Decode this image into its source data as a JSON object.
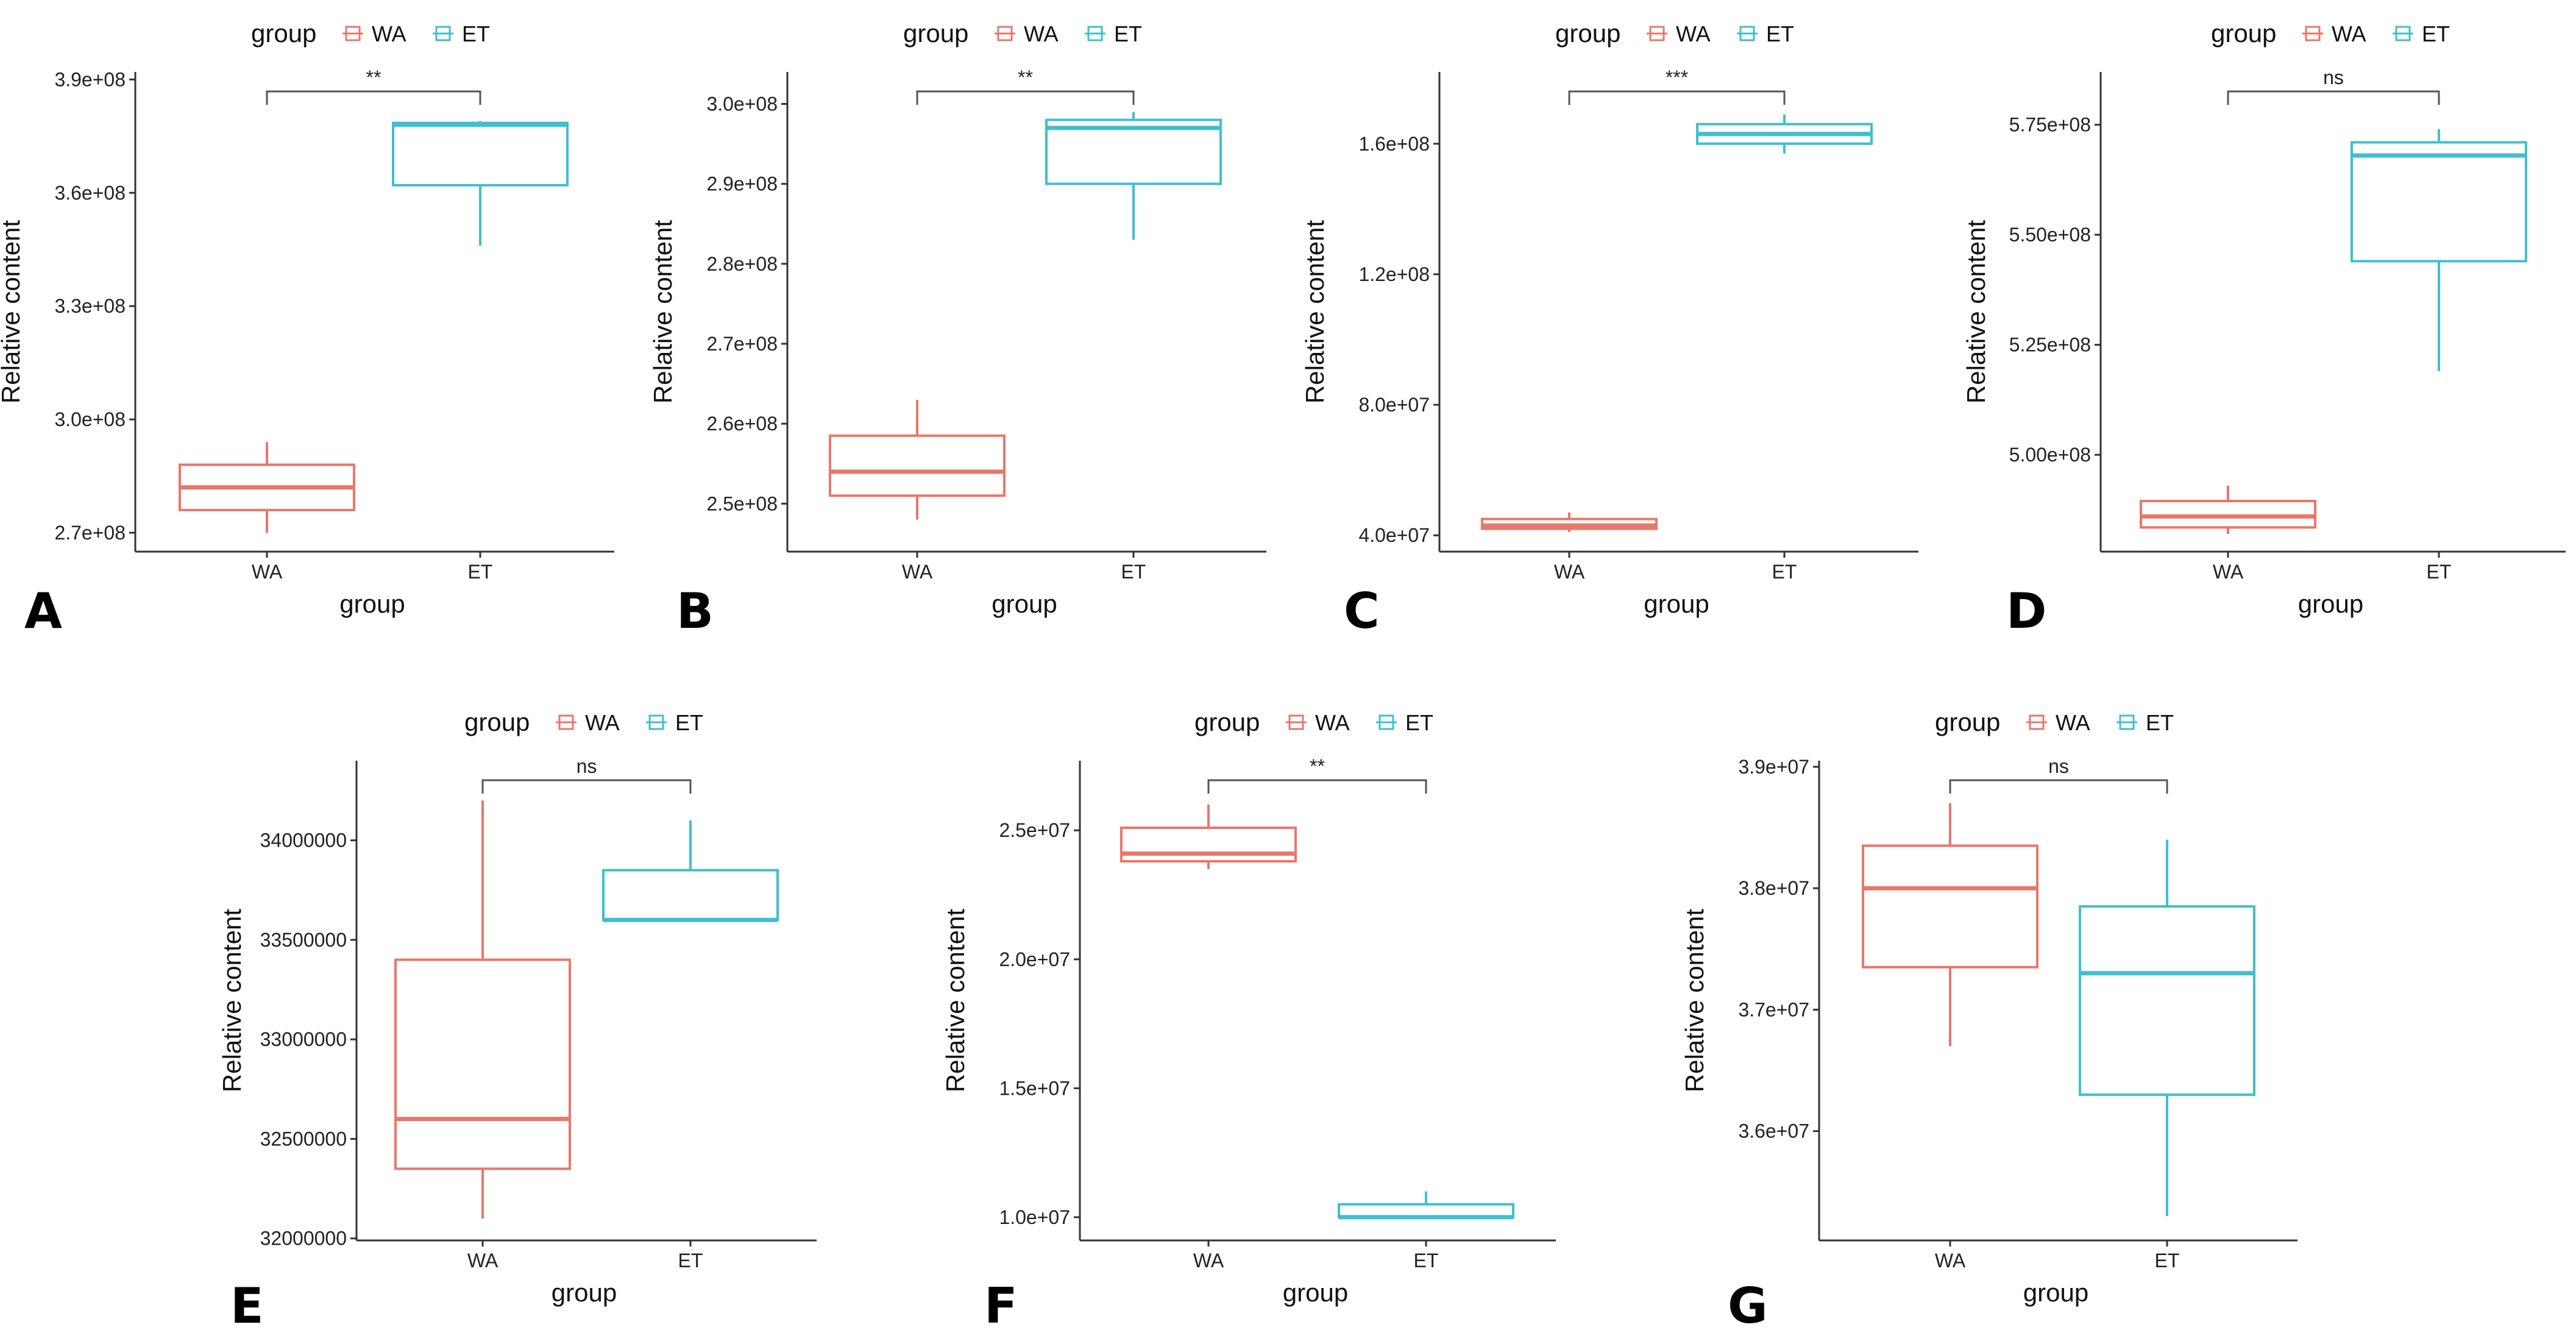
{
  "colors": {
    "WA": "#E8776B",
    "ET": "#3FBFD0",
    "axis": "#333333",
    "bracket": "#555555"
  },
  "legend": {
    "title": "group",
    "labels": [
      "WA",
      "ET"
    ]
  },
  "chart_data": [
    {
      "panel": "A",
      "type": "boxplot",
      "title": "",
      "xlabel": "group",
      "ylabel": "Relative content",
      "categories": [
        "WA",
        "ET"
      ],
      "ylim": [
        265000000,
        392000000
      ],
      "yticks": [
        270000000,
        300000000,
        330000000,
        360000000,
        390000000
      ],
      "ytick_labels": [
        "2.7e+08",
        "3.0e+08",
        "3.3e+08",
        "3.6e+08",
        "3.9e+08"
      ],
      "series": [
        {
          "name": "WA",
          "min": 270000000,
          "q1": 276000000,
          "median": 282000000,
          "q3": 288000000,
          "max": 294000000
        },
        {
          "name": "ET",
          "min": 346000000,
          "q1": 362000000,
          "median": 378000000,
          "q3": 378500000,
          "max": 379000000
        }
      ],
      "significance": "**"
    },
    {
      "panel": "B",
      "type": "boxplot",
      "title": "",
      "xlabel": "group",
      "ylabel": "Relative content",
      "categories": [
        "WA",
        "ET"
      ],
      "ylim": [
        244000000,
        304000000
      ],
      "yticks": [
        250000000,
        260000000,
        270000000,
        280000000,
        290000000,
        300000000
      ],
      "ytick_labels": [
        "2.5e+08",
        "2.6e+08",
        "2.7e+08",
        "2.8e+08",
        "2.9e+08",
        "3.0e+08"
      ],
      "series": [
        {
          "name": "WA",
          "min": 248000000,
          "q1": 251000000,
          "median": 254000000,
          "q3": 258500000,
          "max": 263000000
        },
        {
          "name": "ET",
          "min": 283000000,
          "q1": 290000000,
          "median": 297000000,
          "q3": 298000000,
          "max": 299000000
        }
      ],
      "significance": "**"
    },
    {
      "panel": "C",
      "type": "boxplot",
      "title": "",
      "xlabel": "group",
      "ylabel": "Relative content",
      "categories": [
        "WA",
        "ET"
      ],
      "ylim": [
        35000000,
        182000000
      ],
      "yticks": [
        40000000,
        80000000,
        120000000,
        160000000
      ],
      "ytick_labels": [
        "4.0e+07",
        "8.0e+07",
        "1.2e+08",
        "1.6e+08"
      ],
      "series": [
        {
          "name": "WA",
          "min": 41000000,
          "q1": 42000000,
          "median": 43000000,
          "q3": 45000000,
          "max": 47000000
        },
        {
          "name": "ET",
          "min": 157000000,
          "q1": 160000000,
          "median": 163000000,
          "q3": 166000000,
          "max": 169000000
        }
      ],
      "significance": "***"
    },
    {
      "panel": "D",
      "type": "boxplot",
      "title": "",
      "xlabel": "group",
      "ylabel": "Relative content",
      "categories": [
        "WA",
        "ET"
      ],
      "ylim": [
        478000000,
        587000000
      ],
      "yticks": [
        500000000,
        525000000,
        550000000,
        575000000
      ],
      "ytick_labels": [
        "5.00e+08",
        "5.25e+08",
        "5.50e+08",
        "5.75e+08"
      ],
      "series": [
        {
          "name": "WA",
          "min": 482000000,
          "q1": 483500000,
          "median": 486000000,
          "q3": 489500000,
          "max": 493000000
        },
        {
          "name": "ET",
          "min": 519000000,
          "q1": 544000000,
          "median": 568000000,
          "q3": 571000000,
          "max": 574000000
        }
      ],
      "significance": "ns"
    },
    {
      "panel": "E",
      "type": "boxplot",
      "title": "",
      "xlabel": "group",
      "ylabel": "Relative content",
      "categories": [
        "WA",
        "ET"
      ],
      "ylim": [
        31990000,
        34400000
      ],
      "yticks": [
        32000000,
        32500000,
        33000000,
        33500000,
        34000000
      ],
      "ytick_labels": [
        "32000000",
        "32500000",
        "33000000",
        "33500000",
        "34000000"
      ],
      "series": [
        {
          "name": "WA",
          "min": 32100000,
          "q1": 32350000,
          "median": 32600000,
          "q3": 33400000,
          "max": 34200000
        },
        {
          "name": "ET",
          "min": 33600000,
          "q1": 33600000,
          "median": 33600000,
          "q3": 33850000,
          "max": 34100000
        }
      ],
      "significance": "ns"
    },
    {
      "panel": "F",
      "type": "boxplot",
      "title": "",
      "xlabel": "group",
      "ylabel": "Relative content",
      "categories": [
        "WA",
        "ET"
      ],
      "ylim": [
        9100000,
        27700000
      ],
      "yticks": [
        10000000,
        15000000,
        20000000,
        25000000
      ],
      "ytick_labels": [
        "1.0e+07",
        "1.5e+07",
        "2.0e+07",
        "2.5e+07"
      ],
      "series": [
        {
          "name": "WA",
          "min": 23500000,
          "q1": 23800000,
          "median": 24100000,
          "q3": 25100000,
          "max": 26000000
        },
        {
          "name": "ET",
          "min": 10000000,
          "q1": 10000000,
          "median": 10000000,
          "q3": 10500000,
          "max": 11000000
        }
      ],
      "significance": "**"
    },
    {
      "panel": "G",
      "type": "boxplot",
      "title": "",
      "xlabel": "group",
      "ylabel": "Relative content",
      "categories": [
        "WA",
        "ET"
      ],
      "ylim": [
        35100000,
        39050000
      ],
      "yticks": [
        36000000,
        37000000,
        38000000,
        39000000
      ],
      "ytick_labels": [
        "3.6e+07",
        "3.7e+07",
        "3.8e+07",
        "3.9e+07"
      ],
      "series": [
        {
          "name": "WA",
          "min": 36700000,
          "q1": 37350000,
          "median": 38000000,
          "q3": 38350000,
          "max": 38700000
        },
        {
          "name": "ET",
          "min": 35300000,
          "q1": 36300000,
          "median": 37300000,
          "q3": 37850000,
          "max": 38400000
        }
      ],
      "significance": "ns"
    }
  ]
}
